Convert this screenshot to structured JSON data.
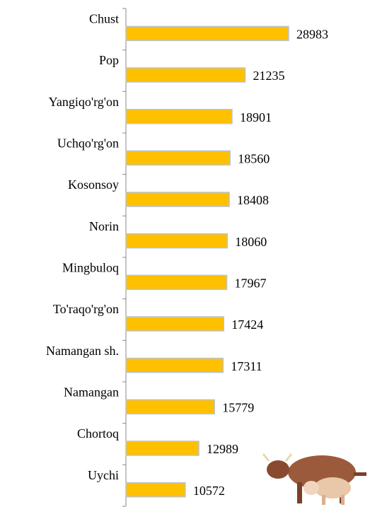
{
  "chart_data": {
    "type": "bar",
    "orientation": "horizontal",
    "categories": [
      "Chust",
      "Pop",
      "Yangiqo'rg'on",
      "Uchqo'rg'on",
      "Kosonsoy",
      "Norin",
      "Mingbuloq",
      "To'raqo'rg'on",
      "Namangan sh.",
      "Namangan",
      "Chortoq",
      "Uychi"
    ],
    "values": [
      28983,
      21235,
      18901,
      18560,
      18408,
      18060,
      17967,
      17424,
      17311,
      15779,
      12989,
      10572
    ],
    "color": "#ffc000",
    "xlim": [
      0,
      29000
    ]
  }
}
